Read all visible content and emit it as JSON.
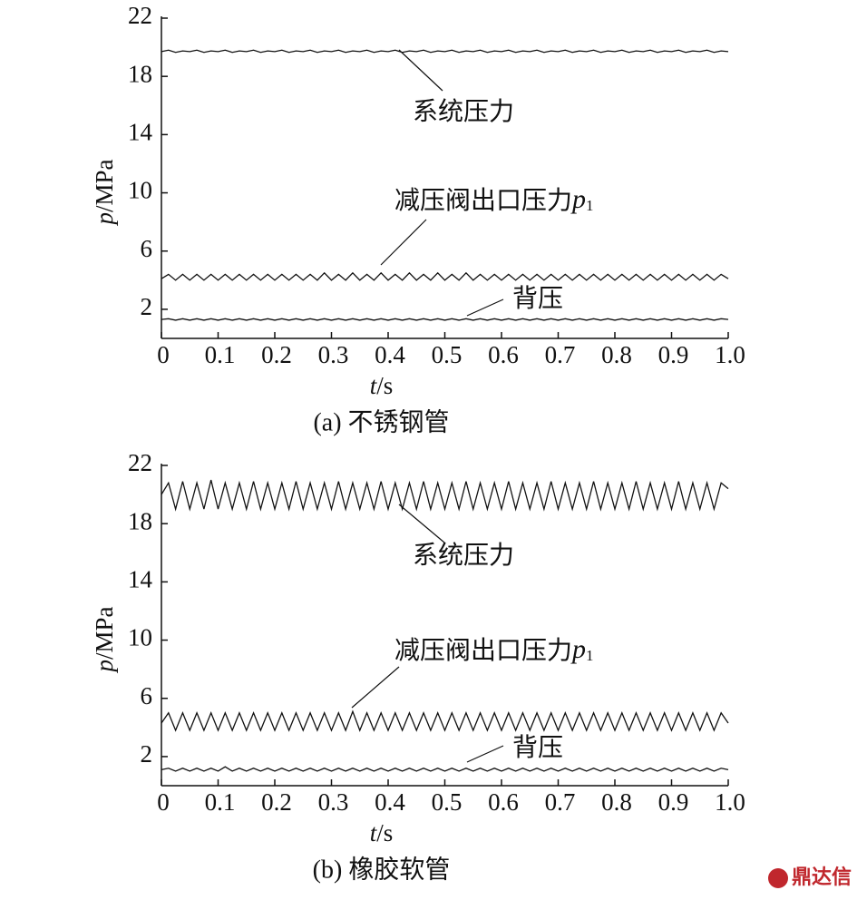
{
  "chart_data": [
    {
      "type": "line",
      "caption": "(a) 不锈钢管",
      "ylabel": {
        "var": "p",
        "unit": "/MPa"
      },
      "xlabel": {
        "var": "t",
        "unit": "/s"
      },
      "xlim": [
        0,
        1
      ],
      "ylim": [
        0,
        22
      ],
      "xticks": [
        0,
        0.1,
        0.2,
        0.3,
        0.4,
        0.5,
        0.6,
        0.7,
        0.8,
        0.9,
        {
          "value": 1,
          "label": "1.0"
        }
      ],
      "yticks": [
        2,
        6,
        10,
        14,
        18,
        22
      ],
      "annotations": [
        {
          "text": "系统压力"
        },
        {
          "text": "减压阀出口压力",
          "var": "p",
          "sub": "1"
        },
        {
          "text": "背压"
        }
      ],
      "x": [
        0,
        0.0125,
        0.025,
        0.0375,
        0.05,
        0.0625,
        0.075,
        0.0875,
        0.1,
        0.1125,
        0.125,
        0.1375,
        0.15,
        0.1625,
        0.175,
        0.1875,
        0.2,
        0.2125,
        0.225,
        0.2375,
        0.25,
        0.2625,
        0.275,
        0.2875,
        0.3,
        0.3125,
        0.325,
        0.3375,
        0.35,
        0.3625,
        0.375,
        0.3875,
        0.4,
        0.4125,
        0.425,
        0.4375,
        0.45,
        0.4625,
        0.475,
        0.4875,
        0.5,
        0.5125,
        0.525,
        0.5375,
        0.55,
        0.5625,
        0.575,
        0.5875,
        0.6,
        0.6125,
        0.625,
        0.6375,
        0.65,
        0.6625,
        0.675,
        0.6875,
        0.7,
        0.7125,
        0.725,
        0.7375,
        0.75,
        0.7625,
        0.775,
        0.7875,
        0.8,
        0.8125,
        0.825,
        0.8375,
        0.85,
        0.8625,
        0.875,
        0.8875,
        0.9,
        0.9125,
        0.925,
        0.9375,
        0.95,
        0.9625,
        0.975,
        0.9875,
        1
      ],
      "series": [
        {
          "color": "#111111",
          "values": [
            19.7,
            19.8,
            19.65,
            19.75,
            19.7,
            19.8,
            19.65,
            19.75,
            19.7,
            19.8,
            19.65,
            19.75,
            19.7,
            19.8,
            19.65,
            19.75,
            19.7,
            19.8,
            19.65,
            19.75,
            19.7,
            19.8,
            19.65,
            19.75,
            19.7,
            19.8,
            19.65,
            19.75,
            19.7,
            19.8,
            19.65,
            19.75,
            19.7,
            19.8,
            19.65,
            19.75,
            19.7,
            19.8,
            19.65,
            19.75,
            19.7,
            19.8,
            19.65,
            19.75,
            19.7,
            19.8,
            19.65,
            19.75,
            19.7,
            19.8,
            19.65,
            19.75,
            19.7,
            19.8,
            19.65,
            19.75,
            19.7,
            19.8,
            19.65,
            19.75,
            19.7,
            19.8,
            19.65,
            19.75,
            19.7,
            19.8,
            19.65,
            19.75,
            19.7,
            19.8,
            19.65,
            19.75,
            19.7,
            19.8,
            19.65,
            19.75,
            19.7,
            19.8,
            19.65,
            19.75,
            19.7
          ]
        },
        {
          "color": "#111111",
          "values": [
            4.1,
            4.4,
            4.0,
            4.4,
            4.0,
            4.4,
            4.0,
            4.4,
            4.0,
            4.4,
            4.0,
            4.4,
            4.0,
            4.4,
            4.0,
            4.4,
            4.0,
            4.4,
            4.0,
            4.4,
            4.0,
            4.4,
            4.0,
            4.5,
            4.0,
            4.4,
            4.0,
            4.5,
            4.0,
            4.4,
            4.0,
            4.5,
            4.0,
            4.4,
            4.0,
            4.5,
            4.0,
            4.4,
            4.0,
            4.5,
            4.0,
            4.4,
            4.0,
            4.5,
            4.0,
            4.4,
            4.0,
            4.4,
            4.0,
            4.4,
            4.0,
            4.4,
            4.0,
            4.4,
            4.0,
            4.4,
            4.0,
            4.4,
            4.0,
            4.4,
            4.0,
            4.4,
            4.0,
            4.4,
            4.0,
            4.4,
            4.0,
            4.4,
            4.0,
            4.4,
            4.0,
            4.4,
            4.0,
            4.4,
            4.0,
            4.4,
            4.0,
            4.4,
            4.0,
            4.4,
            4.1
          ]
        },
        {
          "color": "#111111",
          "values": [
            1.3,
            1.35,
            1.25,
            1.35,
            1.25,
            1.35,
            1.25,
            1.35,
            1.25,
            1.35,
            1.25,
            1.35,
            1.25,
            1.35,
            1.25,
            1.35,
            1.25,
            1.35,
            1.25,
            1.35,
            1.25,
            1.35,
            1.25,
            1.35,
            1.25,
            1.35,
            1.25,
            1.35,
            1.25,
            1.35,
            1.25,
            1.35,
            1.25,
            1.35,
            1.25,
            1.35,
            1.25,
            1.35,
            1.25,
            1.35,
            1.25,
            1.35,
            1.25,
            1.35,
            1.25,
            1.35,
            1.25,
            1.35,
            1.25,
            1.35,
            1.25,
            1.35,
            1.25,
            1.35,
            1.25,
            1.35,
            1.25,
            1.35,
            1.25,
            1.35,
            1.25,
            1.35,
            1.25,
            1.35,
            1.25,
            1.35,
            1.25,
            1.35,
            1.25,
            1.35,
            1.25,
            1.35,
            1.25,
            1.35,
            1.25,
            1.35,
            1.25,
            1.35,
            1.25,
            1.35,
            1.3
          ]
        }
      ]
    },
    {
      "type": "line",
      "caption": "(b) 橡胶软管",
      "ylabel": {
        "var": "p",
        "unit": "/MPa"
      },
      "xlabel": {
        "var": "t",
        "unit": "/s"
      },
      "xlim": [
        0,
        1
      ],
      "ylim": [
        0,
        22
      ],
      "xticks": [
        0,
        0.1,
        0.2,
        0.3,
        0.4,
        0.5,
        0.6,
        0.7,
        0.8,
        0.9,
        {
          "value": 1,
          "label": "1.0"
        }
      ],
      "yticks": [
        2,
        6,
        10,
        14,
        18,
        22
      ],
      "annotations": [
        {
          "text": "系统压力"
        },
        {
          "text": "减压阀出口压力",
          "var": "p",
          "sub": "1"
        },
        {
          "text": "背压"
        }
      ],
      "x": [
        0,
        0.0125,
        0.025,
        0.0375,
        0.05,
        0.0625,
        0.075,
        0.0875,
        0.1,
        0.1125,
        0.125,
        0.1375,
        0.15,
        0.1625,
        0.175,
        0.1875,
        0.2,
        0.2125,
        0.225,
        0.2375,
        0.25,
        0.2625,
        0.275,
        0.2875,
        0.3,
        0.3125,
        0.325,
        0.3375,
        0.35,
        0.3625,
        0.375,
        0.3875,
        0.4,
        0.4125,
        0.425,
        0.4375,
        0.45,
        0.4625,
        0.475,
        0.4875,
        0.5,
        0.5125,
        0.525,
        0.5375,
        0.55,
        0.5625,
        0.575,
        0.5875,
        0.6,
        0.6125,
        0.625,
        0.6375,
        0.65,
        0.6625,
        0.675,
        0.6875,
        0.7,
        0.7125,
        0.725,
        0.7375,
        0.75,
        0.7625,
        0.775,
        0.7875,
        0.8,
        0.8125,
        0.825,
        0.8375,
        0.85,
        0.8625,
        0.875,
        0.8875,
        0.9,
        0.9125,
        0.925,
        0.9375,
        0.95,
        0.9625,
        0.975,
        0.9875,
        1
      ],
      "series": [
        {
          "color": "#111111",
          "values": [
            20.0,
            20.8,
            19.0,
            20.9,
            19.0,
            20.8,
            19.0,
            21.0,
            19.0,
            20.8,
            19.0,
            20.8,
            19.0,
            20.9,
            19.0,
            20.8,
            19.0,
            20.8,
            19.0,
            20.9,
            19.0,
            20.8,
            19.0,
            20.8,
            19.0,
            20.9,
            19.0,
            20.8,
            19.0,
            20.8,
            19.0,
            20.9,
            19.0,
            20.8,
            19.0,
            20.8,
            19.0,
            20.9,
            19.0,
            20.8,
            19.0,
            20.8,
            19.0,
            20.9,
            19.0,
            20.8,
            19.0,
            20.8,
            19.0,
            20.9,
            19.0,
            20.8,
            19.0,
            20.8,
            19.0,
            20.9,
            19.0,
            20.8,
            19.0,
            20.8,
            19.0,
            20.9,
            19.0,
            20.8,
            19.0,
            20.8,
            19.0,
            20.9,
            19.0,
            20.8,
            19.0,
            20.8,
            19.0,
            20.9,
            19.0,
            20.8,
            19.0,
            20.8,
            19.0,
            20.8,
            20.4
          ]
        },
        {
          "color": "#111111",
          "values": [
            4.3,
            5.0,
            3.8,
            5.0,
            3.8,
            5.0,
            3.8,
            5.0,
            3.8,
            5.0,
            3.8,
            5.0,
            3.8,
            5.0,
            3.8,
            5.0,
            3.8,
            5.0,
            3.8,
            5.0,
            3.8,
            5.0,
            3.8,
            5.0,
            3.8,
            5.0,
            3.8,
            5.1,
            3.8,
            5.0,
            3.8,
            5.0,
            3.8,
            5.0,
            3.8,
            5.0,
            3.8,
            5.0,
            3.8,
            5.0,
            3.8,
            5.0,
            3.8,
            5.0,
            3.8,
            5.0,
            3.8,
            5.0,
            3.8,
            5.0,
            3.8,
            5.0,
            3.8,
            5.0,
            3.8,
            5.0,
            3.8,
            5.0,
            3.8,
            5.0,
            3.8,
            5.0,
            3.8,
            5.0,
            3.8,
            5.0,
            3.8,
            5.0,
            3.8,
            5.0,
            3.8,
            5.0,
            3.8,
            5.0,
            3.8,
            5.0,
            3.8,
            5.0,
            3.8,
            5.0,
            4.3
          ]
        },
        {
          "color": "#111111",
          "values": [
            1.1,
            1.2,
            1.0,
            1.2,
            1.0,
            1.2,
            1.0,
            1.2,
            1.0,
            1.3,
            1.0,
            1.2,
            1.0,
            1.2,
            1.0,
            1.2,
            1.0,
            1.2,
            1.0,
            1.2,
            1.0,
            1.2,
            1.0,
            1.2,
            1.0,
            1.2,
            1.0,
            1.2,
            1.0,
            1.2,
            1.0,
            1.2,
            1.0,
            1.2,
            1.0,
            1.2,
            1.0,
            1.2,
            1.0,
            1.2,
            1.0,
            1.2,
            1.0,
            1.2,
            1.0,
            1.2,
            1.0,
            1.2,
            1.0,
            1.2,
            1.0,
            1.2,
            1.0,
            1.2,
            1.0,
            1.2,
            1.0,
            1.2,
            1.0,
            1.2,
            1.0,
            1.2,
            1.0,
            1.2,
            1.0,
            1.2,
            1.0,
            1.2,
            1.0,
            1.2,
            1.0,
            1.2,
            1.0,
            1.2,
            1.0,
            1.2,
            1.0,
            1.2,
            1.0,
            1.2,
            1.1
          ]
        }
      ]
    }
  ],
  "watermark": "鼎达信"
}
